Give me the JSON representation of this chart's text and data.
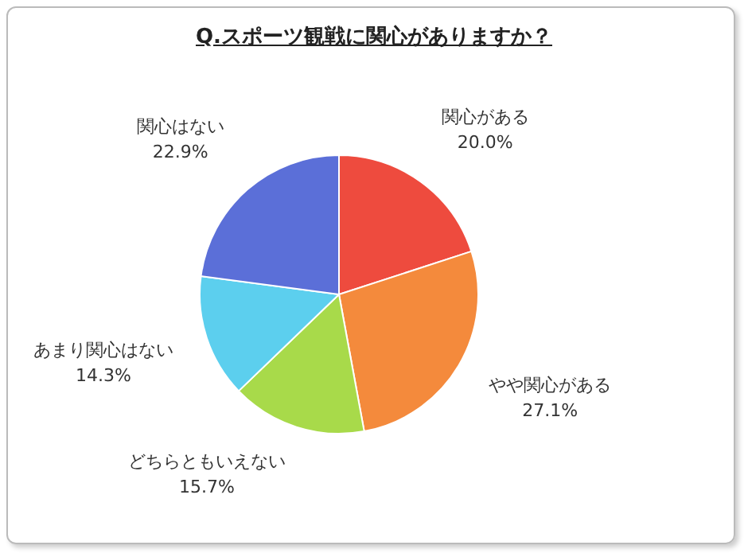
{
  "chart_data": {
    "type": "pie",
    "title": "Q.スポーツ観戦に関心がありますか？",
    "categories": [
      "関心がある",
      "やや関心がある",
      "どちらともいえない",
      "あまり関心はない",
      "関心はない"
    ],
    "values": [
      20.0,
      27.1,
      15.7,
      14.3,
      22.9
    ],
    "value_labels": [
      "20.0%",
      "27.1%",
      "15.7%",
      "14.3%",
      "22.9%"
    ],
    "colors": [
      "#ee4b3e",
      "#f48a3c",
      "#a8da4a",
      "#5ccfee",
      "#5b6fd8"
    ],
    "legend": false
  }
}
